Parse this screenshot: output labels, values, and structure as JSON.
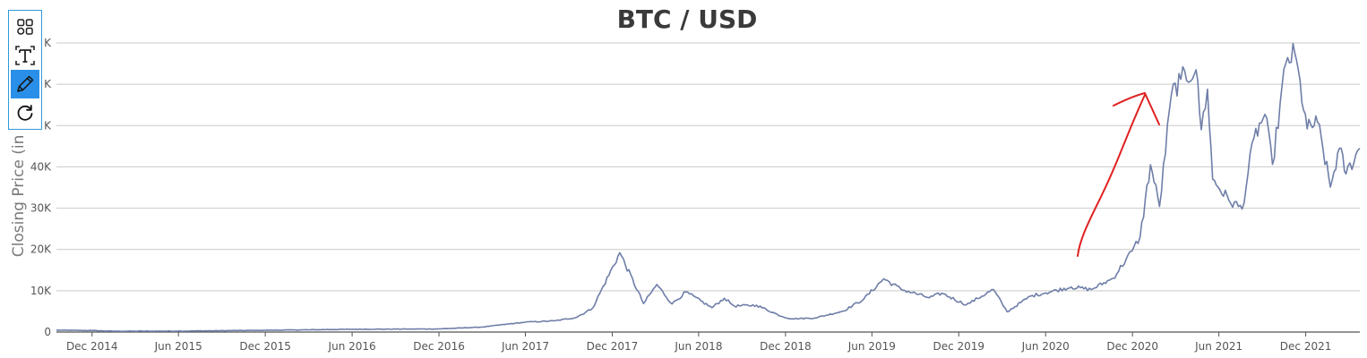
{
  "chart_data": {
    "type": "line",
    "title": "BTC / USD",
    "ylabel": "Closing Price (in U",
    "xlabel": "",
    "ylim": [
      0,
      70000
    ],
    "xlim": [
      "2014-09-17",
      "2022-03-25"
    ],
    "yticks": [
      0,
      10000,
      20000,
      30000,
      40000,
      50000,
      60000,
      70000
    ],
    "ytick_labels": [
      "0",
      "10K",
      "20K",
      "30K",
      "40K",
      "K",
      "K",
      "K"
    ],
    "xticks": [
      "2014-12-01",
      "2015-06-01",
      "2015-12-01",
      "2016-06-01",
      "2016-12-01",
      "2017-06-01",
      "2017-12-01",
      "2018-06-01",
      "2018-12-01",
      "2019-06-01",
      "2019-12-01",
      "2020-06-01",
      "2020-12-01",
      "2021-06-01",
      "2021-12-01"
    ],
    "xtick_labels": [
      "Dec 2014",
      "Jun 2015",
      "Dec 2015",
      "Jun 2016",
      "Dec 2016",
      "Jun 2017",
      "Dec 2017",
      "Jun 2018",
      "Dec 2018",
      "Jun 2019",
      "Dec 2019",
      "Jun 2020",
      "Dec 2020",
      "Jun 2021",
      "Dec 2021"
    ],
    "grid": true,
    "series": [
      {
        "color": "#6f7ea8",
        "x": [
          "2014-09-17",
          "2014-12-01",
          "2015-01-14",
          "2015-06-01",
          "2015-12-01",
          "2016-06-01",
          "2016-12-01",
          "2017-03-01",
          "2017-06-01",
          "2017-08-01",
          "2017-09-15",
          "2017-10-20",
          "2017-12-17",
          "2018-02-05",
          "2018-03-05",
          "2018-04-06",
          "2018-05-05",
          "2018-06-29",
          "2018-07-25",
          "2018-08-15",
          "2018-10-01",
          "2018-11-25",
          "2018-12-15",
          "2019-02-01",
          "2019-04-02",
          "2019-05-15",
          "2019-06-26",
          "2019-08-01",
          "2019-09-30",
          "2019-10-26",
          "2019-12-17",
          "2020-02-12",
          "2020-03-12",
          "2020-04-30",
          "2020-06-01",
          "2020-07-25",
          "2020-09-05",
          "2020-10-21",
          "2020-11-30",
          "2020-12-17",
          "2021-01-08",
          "2021-01-27",
          "2021-02-21",
          "2021-03-13",
          "2021-04-14",
          "2021-04-25",
          "2021-05-08",
          "2021-05-19",
          "2021-06-22",
          "2021-07-20",
          "2021-08-14",
          "2021-09-06",
          "2021-09-22",
          "2021-10-20",
          "2021-11-08",
          "2021-12-04",
          "2021-12-26",
          "2022-01-22",
          "2022-02-10",
          "2022-02-24",
          "2022-03-25"
        ],
        "y": [
          460,
          370,
          200,
          230,
          430,
          670,
          750,
          1200,
          2400,
          2700,
          3500,
          5700,
          19200,
          6900,
          11500,
          6800,
          9700,
          5900,
          8200,
          6300,
          6500,
          3700,
          3200,
          3400,
          5100,
          8000,
          12900,
          10400,
          8300,
          9400,
          6600,
          10300,
          4900,
          8700,
          9500,
          10900,
          10300,
          13000,
          19600,
          23000,
          40500,
          30400,
          57500,
          61200,
          63500,
          49000,
          58800,
          37000,
          31900,
          29800,
          47000,
          52700,
          40600,
          65000,
          67600,
          49200,
          50800,
          35100,
          44500,
          38300,
          44500
        ]
      }
    ],
    "annotation": {
      "type": "freehand-arrow",
      "color": "#e02020"
    }
  },
  "toolbar": {
    "items": [
      {
        "name": "dashboard-icon"
      },
      {
        "name": "text-tool-icon"
      },
      {
        "name": "pencil-icon",
        "active": true
      },
      {
        "name": "refresh-icon"
      }
    ],
    "accent": "#2a8fe8",
    "border": "#2e9ad9"
  }
}
